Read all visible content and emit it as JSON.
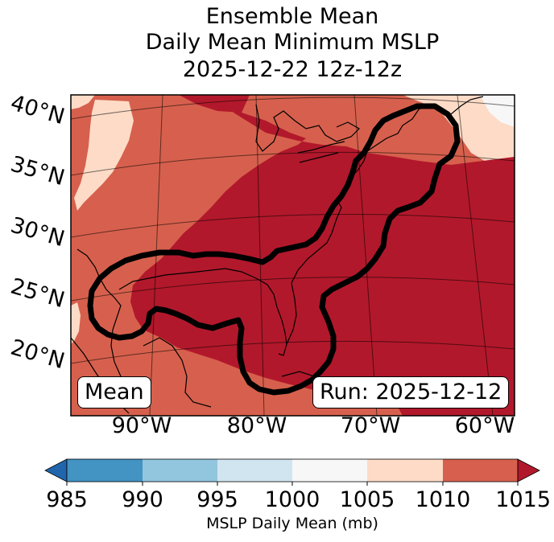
{
  "title": {
    "line1": "Ensemble Mean",
    "line2": "Daily Mean Minimum MSLP",
    "line3": "2025-12-22 12z-12z"
  },
  "map": {
    "lat_labels": [
      "40°N",
      "35°N",
      "30°N",
      "25°N",
      "20°N"
    ],
    "lon_labels": [
      "90°W",
      "80°W",
      "70°W",
      "60°W"
    ],
    "badge_left": "Mean",
    "badge_right": "Run: 2025-12-12"
  },
  "colorbar": {
    "ticks": [
      "985",
      "990",
      "995",
      "1000",
      "1005",
      "1010",
      "1015"
    ],
    "label": "MSLP Daily Mean (mb)",
    "colors": {
      "under": "#2166ac",
      "985_990": "#4393c3",
      "990_995": "#92c5de",
      "995_1000": "#d1e5f0",
      "1000_1005": "#f7f7f7",
      "1005_1010": "#fddbc7",
      "1010_1015": "#d6604d",
      "over": "#b2182b"
    }
  }
}
